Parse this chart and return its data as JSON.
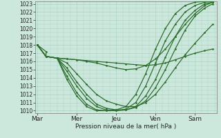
{
  "background_color": "#cce8dd",
  "grid_color": "#aad4c4",
  "line_color": "#2d6e2d",
  "xlabel": "Pression niveau de la mer( hPa )",
  "ylim": [
    1010,
    1023
  ],
  "yticks": [
    1010,
    1011,
    1012,
    1013,
    1014,
    1015,
    1016,
    1017,
    1018,
    1019,
    1020,
    1021,
    1022,
    1023
  ],
  "xtick_labels": [
    "Mar",
    "Mer",
    "Jeu",
    "Ven",
    "Sam"
  ],
  "xtick_positions": [
    0,
    1,
    2,
    3,
    4
  ],
  "lines": [
    {
      "x": [
        0.0,
        0.22,
        0.22,
        0.5,
        0.75,
        1.0,
        1.25,
        1.5,
        1.75,
        2.0,
        2.25,
        2.5,
        2.75,
        3.0,
        3.25,
        3.5,
        3.75,
        4.0,
        4.25,
        4.45
      ],
      "y": [
        1018,
        1017.2,
        1016.6,
        1016.4,
        1016.3,
        1016.2,
        1016.1,
        1016.0,
        1015.9,
        1015.8,
        1015.7,
        1015.6,
        1015.5,
        1015.6,
        1015.8,
        1016.2,
        1016.6,
        1017.0,
        1017.3,
        1017.5
      ]
    },
    {
      "x": [
        0.0,
        0.22,
        0.5,
        0.75,
        1.0,
        1.25,
        1.5,
        1.75,
        2.0,
        2.25,
        2.5,
        2.75,
        3.0,
        3.25,
        3.5,
        3.75,
        4.0,
        4.25,
        4.45
      ],
      "y": [
        1018,
        1016.6,
        1016.4,
        1015.8,
        1014.5,
        1013.2,
        1012.0,
        1011.2,
        1010.8,
        1010.5,
        1010.5,
        1011.0,
        1012.0,
        1013.5,
        1015.2,
        1016.8,
        1018.2,
        1019.5,
        1020.5
      ]
    },
    {
      "x": [
        0.0,
        0.22,
        0.5,
        0.75,
        1.0,
        1.25,
        1.5,
        1.75,
        2.0,
        2.25,
        2.5,
        2.75,
        3.0,
        3.25,
        3.5,
        3.75,
        4.0,
        4.25,
        4.45
      ],
      "y": [
        1018,
        1016.6,
        1016.4,
        1015.2,
        1013.5,
        1012.0,
        1010.8,
        1010.3,
        1010.1,
        1010.1,
        1010.4,
        1011.2,
        1012.8,
        1015.0,
        1017.5,
        1019.8,
        1021.5,
        1022.5,
        1023.0
      ]
    },
    {
      "x": [
        0.0,
        0.22,
        0.5,
        0.75,
        1.0,
        1.25,
        1.5,
        1.75,
        2.0,
        2.25,
        2.5,
        2.75,
        3.0,
        3.25,
        3.5,
        3.75,
        4.0,
        4.25,
        4.45
      ],
      "y": [
        1018,
        1016.6,
        1016.4,
        1014.8,
        1013.0,
        1011.5,
        1010.5,
        1010.1,
        1010.0,
        1010.1,
        1010.5,
        1011.8,
        1013.8,
        1016.5,
        1019.0,
        1021.0,
        1022.2,
        1023.0,
        1023.2
      ]
    },
    {
      "x": [
        0.0,
        0.22,
        0.5,
        0.75,
        1.0,
        1.25,
        1.5,
        1.75,
        2.0,
        2.25,
        2.5,
        2.75,
        3.0,
        3.25,
        3.5,
        3.75,
        4.0,
        4.25,
        4.45
      ],
      "y": [
        1018,
        1016.6,
        1016.4,
        1014.2,
        1012.2,
        1010.8,
        1010.1,
        1010.0,
        1010.0,
        1010.2,
        1011.0,
        1013.0,
        1015.8,
        1018.5,
        1020.5,
        1022.0,
        1022.8,
        1023.2,
        1023.3
      ]
    },
    {
      "x": [
        0.0,
        0.22,
        0.5,
        0.75,
        1.0,
        1.25,
        1.5,
        1.75,
        2.0,
        2.25,
        2.5,
        2.75,
        3.0,
        3.25,
        3.5,
        3.75,
        4.0,
        4.25,
        4.45
      ],
      "y": [
        1018,
        1016.6,
        1016.4,
        1013.8,
        1011.8,
        1010.5,
        1010.0,
        1010.0,
        1010.1,
        1010.5,
        1012.0,
        1014.5,
        1017.5,
        1020.0,
        1021.8,
        1022.8,
        1023.2,
        1023.3,
        1023.3
      ]
    },
    {
      "x": [
        0.0,
        0.22,
        0.5,
        0.75,
        1.0,
        1.25,
        1.5,
        1.75,
        2.0,
        2.25,
        2.5,
        2.75,
        3.0,
        3.25,
        3.5,
        3.75,
        4.0,
        4.25,
        4.45
      ],
      "y": [
        1018,
        1016.6,
        1016.4,
        1016.3,
        1016.2,
        1016.0,
        1015.8,
        1015.5,
        1015.2,
        1015.0,
        1015.1,
        1015.5,
        1016.3,
        1017.5,
        1019.0,
        1020.5,
        1021.8,
        1022.8,
        1023.2
      ]
    }
  ]
}
